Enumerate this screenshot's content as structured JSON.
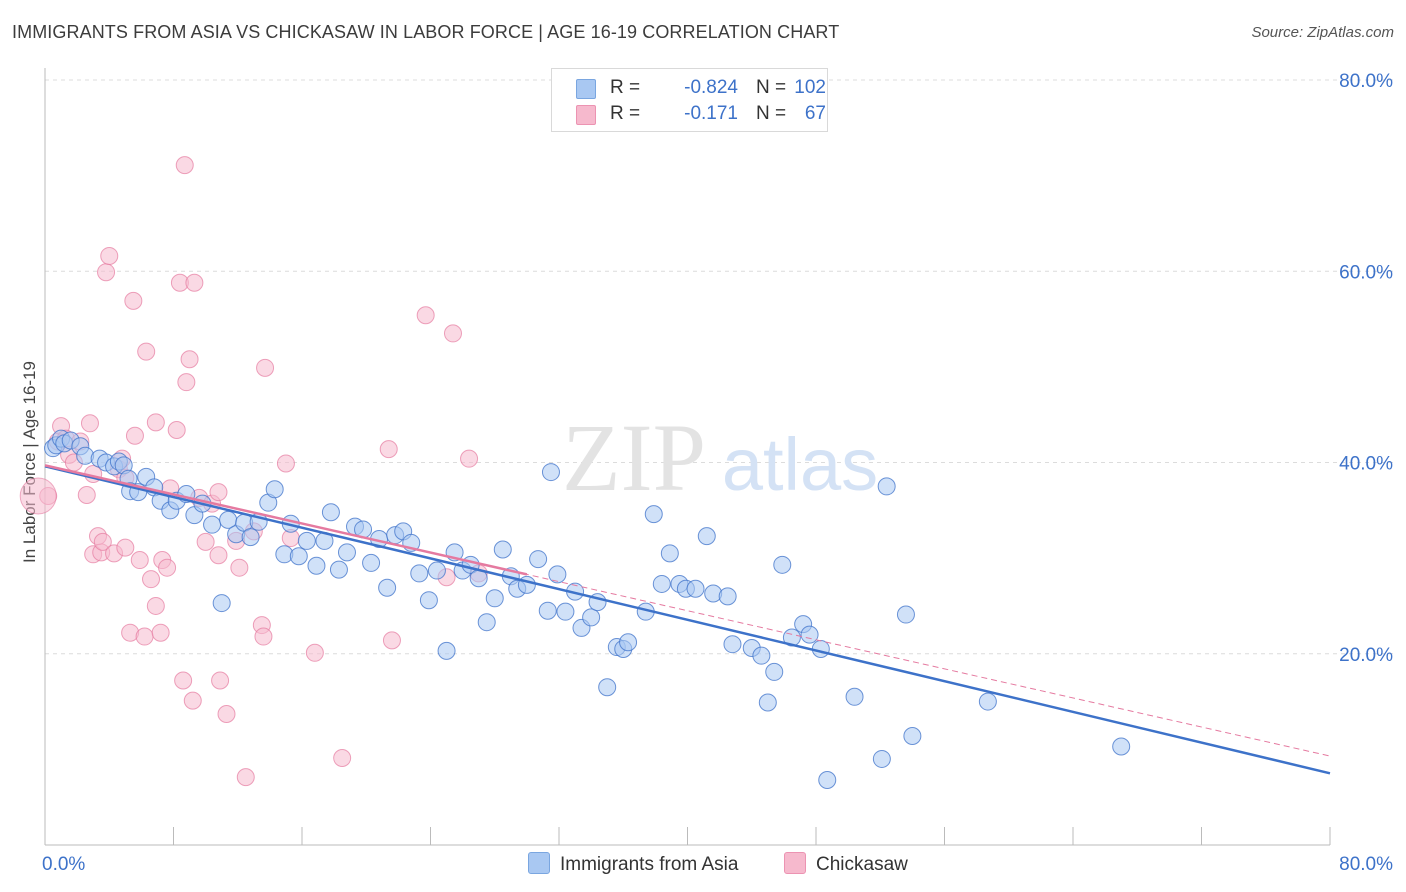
{
  "header": {
    "title": "IMMIGRANTS FROM ASIA VS CHICKASAW IN LABOR FORCE | AGE 16-19 CORRELATION CHART",
    "source": "Source: ZipAtlas.com"
  },
  "watermark": {
    "zip": "ZIP",
    "atlas": "atlas"
  },
  "legend": {
    "rows": [
      {
        "r_label": "R =",
        "r_value": "-0.824",
        "n_label": "N =",
        "n_value": "102",
        "color": "#a9c8f2"
      },
      {
        "r_label": "R =",
        "r_value": "-0.171",
        "n_label": "N =",
        "n_value": "67",
        "color": "#f6b9cd"
      }
    ]
  },
  "bottom_legend": [
    {
      "label": "Immigrants from Asia",
      "color": "#a9c8f2"
    },
    {
      "label": "Chickasaw",
      "color": "#f6b9cd"
    }
  ],
  "chart_data": {
    "type": "scatter",
    "title": "IMMIGRANTS FROM ASIA VS CHICKASAW IN LABOR FORCE | AGE 16-19 CORRELATION CHART",
    "xlabel": "",
    "ylabel": "In Labor Force | Age 16-19",
    "xlim": [
      0,
      80
    ],
    "ylim": [
      0,
      80
    ],
    "x_tick_labels": [
      "0.0%",
      "80.0%"
    ],
    "y_tick_labels": [
      "20.0%",
      "40.0%",
      "60.0%",
      "80.0%"
    ],
    "y_ticks": [
      20,
      40,
      60,
      80
    ],
    "grid": "horizontal dashed",
    "legend_position": "top-center",
    "colors": {
      "asia": "#3d72c9",
      "asia_fill": "#a9c8f2",
      "chickasaw": "#e57aa0",
      "chickasaw_fill": "#f6b9cd",
      "axis_label": "#3d72c9"
    },
    "series": [
      {
        "name": "Immigrants from Asia",
        "r": -0.824,
        "n": 102,
        "trend": {
          "x": [
            0,
            80
          ],
          "y": [
            39.6,
            7.5
          ],
          "style": "solid"
        },
        "points": [
          [
            0.5,
            41.5
          ],
          [
            0.7,
            41.8
          ],
          [
            1.0,
            42.5
          ],
          [
            1.2,
            42.0
          ],
          [
            1.6,
            42.3
          ],
          [
            2.2,
            41.7
          ],
          [
            2.5,
            40.7
          ],
          [
            3.4,
            40.4
          ],
          [
            3.8,
            40.0
          ],
          [
            4.3,
            39.6
          ],
          [
            4.6,
            40.1
          ],
          [
            4.9,
            39.7
          ],
          [
            5.2,
            38.3
          ],
          [
            5.3,
            37.0
          ],
          [
            5.8,
            36.9
          ],
          [
            6.3,
            38.5
          ],
          [
            6.8,
            37.4
          ],
          [
            7.2,
            36.0
          ],
          [
            7.8,
            35.0
          ],
          [
            8.2,
            36.0
          ],
          [
            8.8,
            36.7
          ],
          [
            9.3,
            34.5
          ],
          [
            9.8,
            35.7
          ],
          [
            10.4,
            33.5
          ],
          [
            11.0,
            25.3
          ],
          [
            11.4,
            34.0
          ],
          [
            11.9,
            32.5
          ],
          [
            12.4,
            33.7
          ],
          [
            12.8,
            32.2
          ],
          [
            13.3,
            33.8
          ],
          [
            13.9,
            35.8
          ],
          [
            14.3,
            37.2
          ],
          [
            14.9,
            30.4
          ],
          [
            15.3,
            33.6
          ],
          [
            15.8,
            30.2
          ],
          [
            16.3,
            31.8
          ],
          [
            16.9,
            29.2
          ],
          [
            17.4,
            31.8
          ],
          [
            17.8,
            34.8
          ],
          [
            18.3,
            28.8
          ],
          [
            18.8,
            30.6
          ],
          [
            19.3,
            33.3
          ],
          [
            19.8,
            33.0
          ],
          [
            20.3,
            29.5
          ],
          [
            20.8,
            32.0
          ],
          [
            21.3,
            26.9
          ],
          [
            21.8,
            32.4
          ],
          [
            22.3,
            32.8
          ],
          [
            22.8,
            31.6
          ],
          [
            23.3,
            28.4
          ],
          [
            23.9,
            25.6
          ],
          [
            24.4,
            28.7
          ],
          [
            25.0,
            20.3
          ],
          [
            25.5,
            30.6
          ],
          [
            26.0,
            28.7
          ],
          [
            26.5,
            29.3
          ],
          [
            27.0,
            27.9
          ],
          [
            27.5,
            23.3
          ],
          [
            28.0,
            25.8
          ],
          [
            28.5,
            30.9
          ],
          [
            29.0,
            28.1
          ],
          [
            29.4,
            26.8
          ],
          [
            30.0,
            27.2
          ],
          [
            30.7,
            29.9
          ],
          [
            31.3,
            24.5
          ],
          [
            31.9,
            28.3
          ],
          [
            32.4,
            24.4
          ],
          [
            33.0,
            26.5
          ],
          [
            33.4,
            22.7
          ],
          [
            34.0,
            23.8
          ],
          [
            34.4,
            25.4
          ],
          [
            35.0,
            16.5
          ],
          [
            35.6,
            20.7
          ],
          [
            36.0,
            20.5
          ],
          [
            36.3,
            21.2
          ],
          [
            37.4,
            24.4
          ],
          [
            37.9,
            34.6
          ],
          [
            38.4,
            27.3
          ],
          [
            38.9,
            30.5
          ],
          [
            39.5,
            27.3
          ],
          [
            39.9,
            26.8
          ],
          [
            40.5,
            26.8
          ],
          [
            41.2,
            32.3
          ],
          [
            41.6,
            26.3
          ],
          [
            42.5,
            26.0
          ],
          [
            42.8,
            21.0
          ],
          [
            44.0,
            20.6
          ],
          [
            44.6,
            19.8
          ],
          [
            45.0,
            14.9
          ],
          [
            45.4,
            18.1
          ],
          [
            45.9,
            29.3
          ],
          [
            46.5,
            21.7
          ],
          [
            47.2,
            23.1
          ],
          [
            47.6,
            22.0
          ],
          [
            48.3,
            20.5
          ],
          [
            48.7,
            6.8
          ],
          [
            50.4,
            15.5
          ],
          [
            52.1,
            9.0
          ],
          [
            52.4,
            37.5
          ],
          [
            53.6,
            24.1
          ],
          [
            54.0,
            11.4
          ],
          [
            58.7,
            15.0
          ],
          [
            67.0,
            10.3
          ],
          [
            31.5,
            39.0
          ]
        ]
      },
      {
        "name": "Chickasaw",
        "r": -0.171,
        "n": 67,
        "trend": {
          "x": [
            0,
            30
          ],
          "y": [
            39.7,
            28.3
          ],
          "style": "solid",
          "extended": {
            "x": [
              0,
              80
            ],
            "y": [
              39.7,
              9.3
            ],
            "style": "dashed"
          }
        },
        "points": [
          [
            0.2,
            36.5
          ],
          [
            0.8,
            42.2
          ],
          [
            1.0,
            43.8
          ],
          [
            1.3,
            42.5
          ],
          [
            1.5,
            40.8
          ],
          [
            1.8,
            40.0
          ],
          [
            2.2,
            42.2
          ],
          [
            2.6,
            36.6
          ],
          [
            2.8,
            44.1
          ],
          [
            3.0,
            38.8
          ],
          [
            3.0,
            30.4
          ],
          [
            3.5,
            30.6
          ],
          [
            3.3,
            32.3
          ],
          [
            3.6,
            31.7
          ],
          [
            3.8,
            59.9
          ],
          [
            4.0,
            61.6
          ],
          [
            4.3,
            30.5
          ],
          [
            4.6,
            39.3
          ],
          [
            4.8,
            40.4
          ],
          [
            5.0,
            38.4
          ],
          [
            5.0,
            31.1
          ],
          [
            5.3,
            22.2
          ],
          [
            5.5,
            56.9
          ],
          [
            5.6,
            42.8
          ],
          [
            5.9,
            29.8
          ],
          [
            6.2,
            21.8
          ],
          [
            6.3,
            51.6
          ],
          [
            6.6,
            27.8
          ],
          [
            6.9,
            44.2
          ],
          [
            6.9,
            25.0
          ],
          [
            7.2,
            22.2
          ],
          [
            7.3,
            29.8
          ],
          [
            7.6,
            29.0
          ],
          [
            7.8,
            37.3
          ],
          [
            8.2,
            43.4
          ],
          [
            8.4,
            58.8
          ],
          [
            8.6,
            17.2
          ],
          [
            8.8,
            48.4
          ],
          [
            8.7,
            71.1
          ],
          [
            9.0,
            50.8
          ],
          [
            9.2,
            15.1
          ],
          [
            9.3,
            58.8
          ],
          [
            9.6,
            36.3
          ],
          [
            10.0,
            31.7
          ],
          [
            10.4,
            35.7
          ],
          [
            10.8,
            36.9
          ],
          [
            10.8,
            30.3
          ],
          [
            10.9,
            17.2
          ],
          [
            11.3,
            13.7
          ],
          [
            11.9,
            31.8
          ],
          [
            12.1,
            29.0
          ],
          [
            12.5,
            7.1
          ],
          [
            13.0,
            32.8
          ],
          [
            13.5,
            23.0
          ],
          [
            13.6,
            21.8
          ],
          [
            13.7,
            49.9
          ],
          [
            15.0,
            39.9
          ],
          [
            15.3,
            32.1
          ],
          [
            16.8,
            20.1
          ],
          [
            18.5,
            9.1
          ],
          [
            21.4,
            41.4
          ],
          [
            21.6,
            21.4
          ],
          [
            23.7,
            55.4
          ],
          [
            25.4,
            53.5
          ],
          [
            25.0,
            28.0
          ],
          [
            27.0,
            28.4
          ],
          [
            26.4,
            40.4
          ]
        ]
      }
    ]
  }
}
